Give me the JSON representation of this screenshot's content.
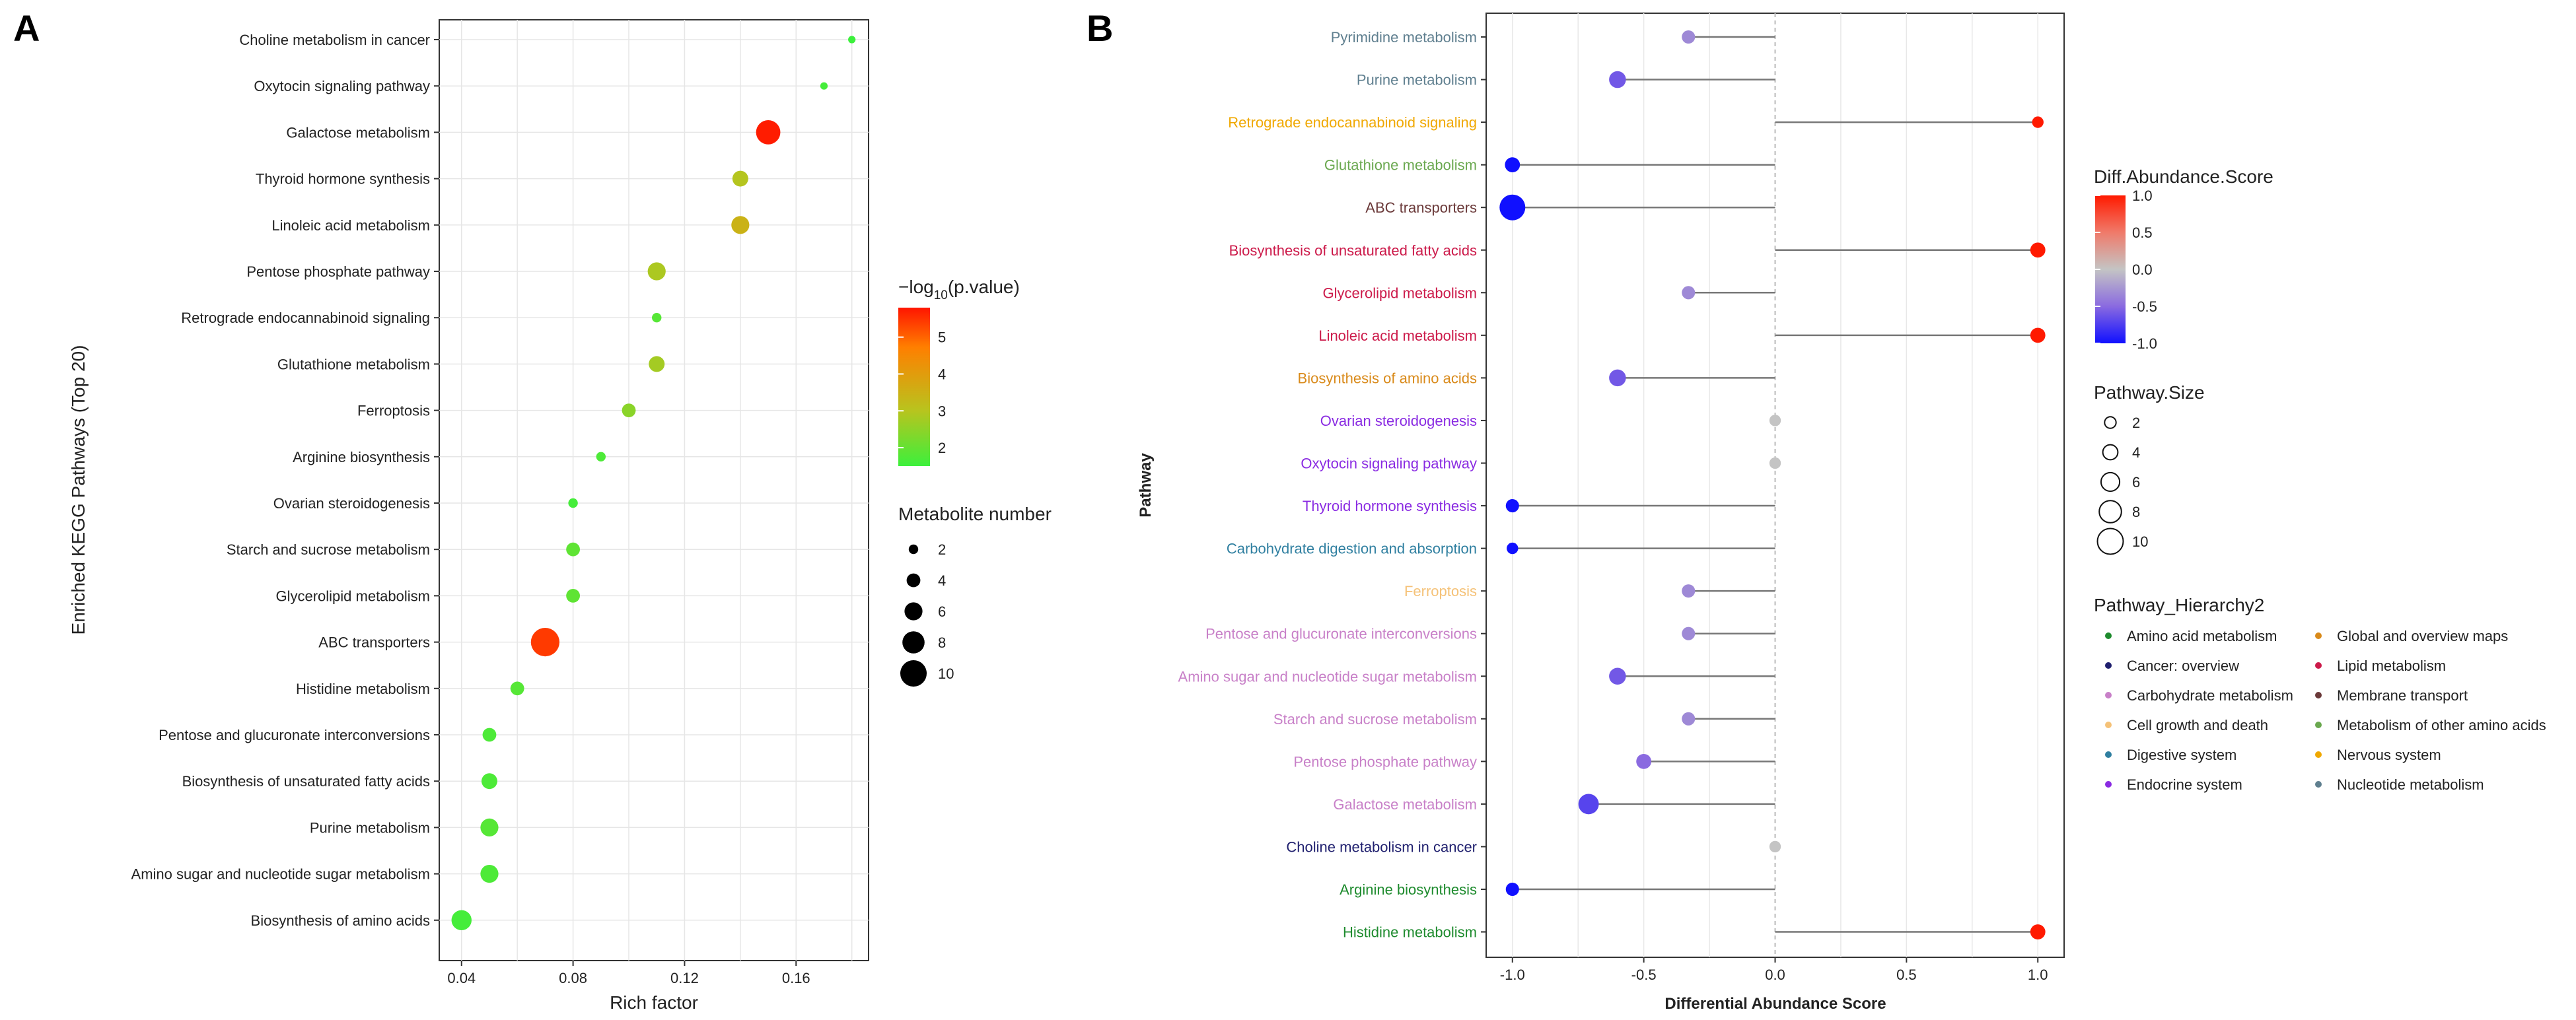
{
  "chart_data": [
    {
      "panel": "A",
      "type": "scatter",
      "ylabel": "Enriched KEGG Pathways (Top 20)",
      "xlabel": "Rich factor",
      "xlim": [
        0.032,
        0.186
      ],
      "xticks": [
        0.04,
        0.08,
        0.12,
        0.16
      ],
      "xtick_labels": [
        "0.04",
        "0.08",
        "0.12",
        "0.16"
      ],
      "grid": true,
      "color_scale": {
        "min": 1.5,
        "max": 5.8,
        "stops": [
          "#3cf03c",
          "#b8c41e",
          "#ff7f00",
          "#ff1500"
        ]
      },
      "points": [
        {
          "pathway": "Choline metabolism in cancer",
          "rich": 0.18,
          "count": 1,
          "logp": 1.5
        },
        {
          "pathway": "Oxytocin signaling pathway",
          "rich": 0.17,
          "count": 1,
          "logp": 1.6
        },
        {
          "pathway": "Galactose metabolism",
          "rich": 0.15,
          "count": 9,
          "logp": 5.7
        },
        {
          "pathway": "Thyroid hormone synthesis",
          "rich": 0.14,
          "count": 5,
          "logp": 2.9
        },
        {
          "pathway": "Linoleic acid metabolism",
          "rich": 0.14,
          "count": 6,
          "logp": 3.3
        },
        {
          "pathway": "Pentose phosphate pathway",
          "rich": 0.11,
          "count": 6,
          "logp": 2.8
        },
        {
          "pathway": "Retrograde endocannabinoid signaling",
          "rich": 0.11,
          "count": 2,
          "logp": 1.8
        },
        {
          "pathway": "Glutathione metabolism",
          "rich": 0.11,
          "count": 5,
          "logp": 2.7
        },
        {
          "pathway": "Ferroptosis",
          "rich": 0.1,
          "count": 4,
          "logp": 2.4
        },
        {
          "pathway": "Arginine biosynthesis",
          "rich": 0.09,
          "count": 2,
          "logp": 1.7
        },
        {
          "pathway": "Ovarian steroidogenesis",
          "rich": 0.08,
          "count": 2,
          "logp": 1.6
        },
        {
          "pathway": "Starch and sucrose metabolism",
          "rich": 0.08,
          "count": 4,
          "logp": 1.9
        },
        {
          "pathway": "Glycerolipid metabolism",
          "rich": 0.08,
          "count": 4,
          "logp": 1.9
        },
        {
          "pathway": "ABC transporters",
          "rich": 0.07,
          "count": 11,
          "logp": 5.3
        },
        {
          "pathway": "Histidine metabolism",
          "rich": 0.06,
          "count": 4,
          "logp": 1.8
        },
        {
          "pathway": "Pentose and glucuronate interconversions",
          "rich": 0.05,
          "count": 4,
          "logp": 1.7
        },
        {
          "pathway": "Biosynthesis of unsaturated fatty acids",
          "rich": 0.05,
          "count": 5,
          "logp": 1.7
        },
        {
          "pathway": "Purine metabolism",
          "rich": 0.05,
          "count": 6,
          "logp": 1.8
        },
        {
          "pathway": "Amino sugar and nucleotide sugar metabolism",
          "rich": 0.05,
          "count": 6,
          "logp": 1.7
        },
        {
          "pathway": "Biosynthesis of amino acids",
          "rich": 0.04,
          "count": 7,
          "logp": 1.6
        }
      ],
      "legend_color": {
        "title_prefix": "−log",
        "title_sub": "10",
        "title_suffix": "(p.value)",
        "ticks": [
          5,
          4,
          3,
          2
        ]
      },
      "legend_size": {
        "title": "Metabolite number",
        "values": [
          2,
          4,
          6,
          8,
          10
        ]
      }
    },
    {
      "panel": "B",
      "type": "lollipop",
      "ylabel": "Pathway",
      "xlabel": "Differential Abundance Score",
      "xlim": [
        -1.1,
        1.1
      ],
      "xticks": [
        -1.0,
        -0.5,
        0.0,
        0.5,
        1.0
      ],
      "xtick_labels": [
        "-1.0",
        "-0.5",
        "0.0",
        "0.5",
        "1.0"
      ],
      "grid": true,
      "items": [
        {
          "pathway": "Pyrimidine metabolism",
          "score": -0.33,
          "size": 3,
          "group": "Nucleotide metabolism"
        },
        {
          "pathway": "Purine metabolism",
          "score": -0.6,
          "size": 5,
          "group": "Nucleotide metabolism"
        },
        {
          "pathway": "Retrograde endocannabinoid signaling",
          "score": 1.0,
          "size": 2,
          "group": "Nervous system"
        },
        {
          "pathway": "Glutathione metabolism",
          "score": -1.0,
          "size": 4,
          "group": "Metabolism of other amino acids"
        },
        {
          "pathway": "ABC transporters",
          "score": -1.0,
          "size": 10,
          "group": "Membrane transport"
        },
        {
          "pathway": "Biosynthesis of unsaturated fatty acids",
          "score": 1.0,
          "size": 4,
          "group": "Lipid metabolism"
        },
        {
          "pathway": "Glycerolipid metabolism",
          "score": -0.33,
          "size": 3,
          "group": "Lipid metabolism"
        },
        {
          "pathway": "Linoleic acid metabolism",
          "score": 1.0,
          "size": 4,
          "group": "Lipid metabolism"
        },
        {
          "pathway": "Biosynthesis of amino acids",
          "score": -0.6,
          "size": 5,
          "group": "Global and overview maps"
        },
        {
          "pathway": "Ovarian steroidogenesis",
          "score": 0.0,
          "size": 2,
          "group": "Endocrine system"
        },
        {
          "pathway": "Oxytocin signaling pathway",
          "score": 0.0,
          "size": 2,
          "group": "Endocrine system"
        },
        {
          "pathway": "Thyroid hormone synthesis",
          "score": -1.0,
          "size": 3,
          "group": "Endocrine system"
        },
        {
          "pathway": "Carbohydrate digestion and absorption",
          "score": -1.0,
          "size": 2,
          "group": "Digestive system"
        },
        {
          "pathway": "Ferroptosis",
          "score": -0.33,
          "size": 3,
          "group": "Cell growth and death"
        },
        {
          "pathway": "Pentose and glucuronate interconversions",
          "score": -0.33,
          "size": 3,
          "group": "Carbohydrate metabolism"
        },
        {
          "pathway": "Amino sugar and nucleotide sugar metabolism",
          "score": -0.6,
          "size": 5,
          "group": "Carbohydrate metabolism"
        },
        {
          "pathway": "Starch and sucrose metabolism",
          "score": -0.33,
          "size": 3,
          "group": "Carbohydrate metabolism"
        },
        {
          "pathway": "Pentose phosphate pathway",
          "score": -0.5,
          "size": 4,
          "group": "Carbohydrate metabolism"
        },
        {
          "pathway": "Galactose metabolism",
          "score": -0.71,
          "size": 7,
          "group": "Carbohydrate metabolism"
        },
        {
          "pathway": "Choline metabolism in cancer",
          "score": 0.0,
          "size": 2,
          "group": "Cancer: overview"
        },
        {
          "pathway": "Arginine biosynthesis",
          "score": -1.0,
          "size": 3,
          "group": "Amino acid metabolism"
        },
        {
          "pathway": "Histidine metabolism",
          "score": 1.0,
          "size": 4,
          "group": "Amino acid metabolism"
        }
      ],
      "legend_color": {
        "title": "Diff.Abundance.Score",
        "ticks": [
          "1.0",
          "0.5",
          "0.0",
          "-0.5",
          "-1.0"
        ]
      },
      "legend_size": {
        "title": "Pathway.Size",
        "values": [
          2,
          4,
          6,
          8,
          10
        ]
      },
      "legend_hierarchy": {
        "title": "Pathway_Hierarchy2",
        "col1": [
          {
            "label": "Amino acid metabolism",
            "color": "#1e8b2e"
          },
          {
            "label": "Cancer: overview",
            "color": "#1f1f6e"
          },
          {
            "label": "Carbohydrate metabolism",
            "color": "#c880c8"
          },
          {
            "label": "Cell growth and death",
            "color": "#f5c278"
          },
          {
            "label": "Digestive system",
            "color": "#2f7fa0"
          },
          {
            "label": "Endocrine system",
            "color": "#8a2be2"
          }
        ],
        "col2": [
          {
            "label": "Global and overview maps",
            "color": "#d98a1a"
          },
          {
            "label": "Lipid metabolism",
            "color": "#cc1a4a"
          },
          {
            "label": "Membrane transport",
            "color": "#6b3a3a"
          },
          {
            "label": "Metabolism of other amino acids",
            "color": "#6aa84f"
          },
          {
            "label": "Nervous system",
            "color": "#f0a800"
          },
          {
            "label": "Nucleotide metabolism",
            "color": "#5f7f8f"
          }
        ]
      }
    }
  ],
  "panels": {
    "a_label": "A",
    "b_label": "B"
  }
}
